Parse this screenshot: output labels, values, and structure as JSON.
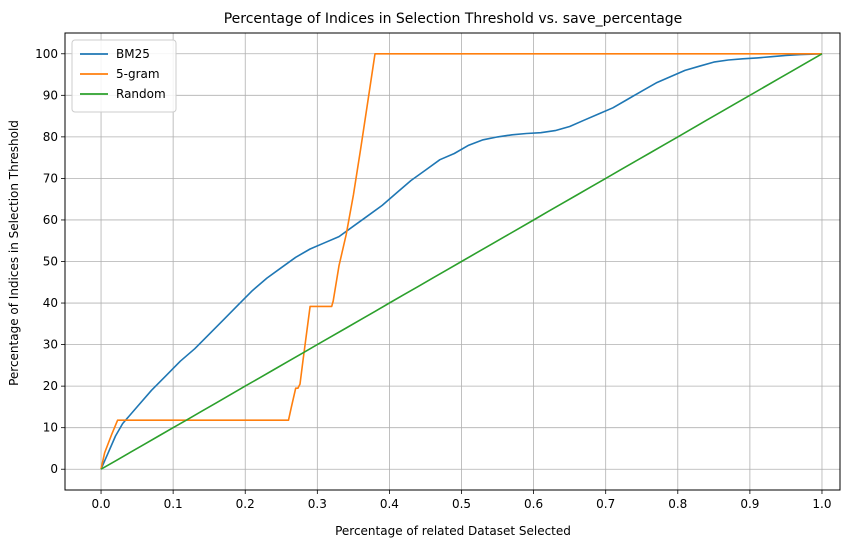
{
  "chart_data": {
    "type": "line",
    "title": "Percentage of Indices in Selection Threshold vs. save_percentage",
    "xlabel": "Percentage of related Dataset Selected",
    "ylabel": "Percentage of Indices in Selection Threshold",
    "xlim": [
      -0.05,
      1.025
    ],
    "ylim": [
      -5,
      105
    ],
    "xticks": [
      0.0,
      0.1,
      0.2,
      0.3,
      0.4,
      0.5,
      0.6,
      0.7,
      0.8,
      0.9,
      1.0
    ],
    "xtick_labels": [
      "0.0",
      "0.1",
      "0.2",
      "0.3",
      "0.4",
      "0.5",
      "0.6",
      "0.7",
      "0.8",
      "0.9",
      "1.0"
    ],
    "yticks": [
      0,
      10,
      20,
      30,
      40,
      50,
      60,
      70,
      80,
      90,
      100
    ],
    "ytick_labels": [
      "0",
      "10",
      "20",
      "30",
      "40",
      "50",
      "60",
      "70",
      "80",
      "90",
      "100"
    ],
    "grid": true,
    "legend_position": "upper-left",
    "series": [
      {
        "name": "BM25",
        "color": "#1f77b4",
        "x": [
          0.0,
          0.01,
          0.02,
          0.03,
          0.05,
          0.07,
          0.09,
          0.11,
          0.13,
          0.15,
          0.17,
          0.19,
          0.21,
          0.23,
          0.25,
          0.27,
          0.29,
          0.31,
          0.33,
          0.35,
          0.37,
          0.39,
          0.41,
          0.43,
          0.45,
          0.47,
          0.49,
          0.51,
          0.53,
          0.55,
          0.57,
          0.59,
          0.61,
          0.63,
          0.65,
          0.67,
          0.69,
          0.71,
          0.73,
          0.75,
          0.77,
          0.79,
          0.81,
          0.83,
          0.85,
          0.87,
          0.89,
          0.91,
          0.93,
          0.95,
          0.97,
          1.0
        ],
        "y": [
          0,
          4,
          8,
          11,
          15,
          19,
          22.5,
          26,
          29,
          32.5,
          36,
          39.5,
          43,
          46,
          48.5,
          51,
          53,
          54.5,
          56,
          58.5,
          61,
          63.5,
          66.5,
          69.5,
          72,
          74.5,
          76,
          78,
          79.3,
          80,
          80.5,
          80.8,
          81,
          81.5,
          82.5,
          84,
          85.5,
          87,
          89,
          91,
          93,
          94.5,
          96,
          97,
          98,
          98.5,
          98.8,
          99,
          99.3,
          99.6,
          99.8,
          100
        ]
      },
      {
        "name": "5-gram",
        "color": "#ff7f0e",
        "x": [
          0.0,
          0.005,
          0.015,
          0.023,
          0.1,
          0.2,
          0.26,
          0.264,
          0.27,
          0.273,
          0.276,
          0.28,
          0.29,
          0.3,
          0.31,
          0.32,
          0.322,
          0.33,
          0.34,
          0.35,
          0.36,
          0.37,
          0.38,
          0.5,
          0.7,
          0.9,
          1.0
        ],
        "y": [
          0,
          4,
          8.5,
          11.8,
          11.8,
          11.8,
          11.8,
          15,
          19.5,
          19.5,
          20.5,
          26,
          39.2,
          39.2,
          39.2,
          39.2,
          40.5,
          49,
          56.5,
          66,
          77,
          88.5,
          100,
          100,
          100,
          100,
          100
        ]
      },
      {
        "name": "Random",
        "color": "#2ca02c",
        "x": [
          0.0,
          0.02,
          0.04,
          0.06,
          0.08,
          0.1,
          0.12,
          0.14,
          0.16,
          0.18,
          0.2,
          0.22,
          0.24,
          0.26,
          0.28,
          0.3,
          0.32,
          0.34,
          0.36,
          0.38,
          0.4,
          0.42,
          0.44,
          0.46,
          0.48,
          0.5,
          0.52,
          0.54,
          0.56,
          0.58,
          0.6,
          0.62,
          0.64,
          0.66,
          0.68,
          0.7,
          0.72,
          0.74,
          0.76,
          0.78,
          0.8,
          0.82,
          0.84,
          0.86,
          0.88,
          0.9,
          0.92,
          0.94,
          0.96,
          0.98,
          1.0
        ],
        "y": [
          0,
          2,
          4,
          6,
          8,
          10,
          12,
          14,
          16,
          18,
          20,
          22,
          24,
          26,
          28,
          30,
          32,
          34,
          36,
          38,
          40,
          42,
          44,
          46,
          48,
          50,
          52,
          54,
          56,
          58,
          60,
          62,
          64,
          66,
          68,
          70,
          72,
          74,
          76,
          78,
          80,
          82,
          84,
          86,
          88,
          90,
          92,
          94,
          96,
          98,
          100
        ]
      }
    ]
  }
}
